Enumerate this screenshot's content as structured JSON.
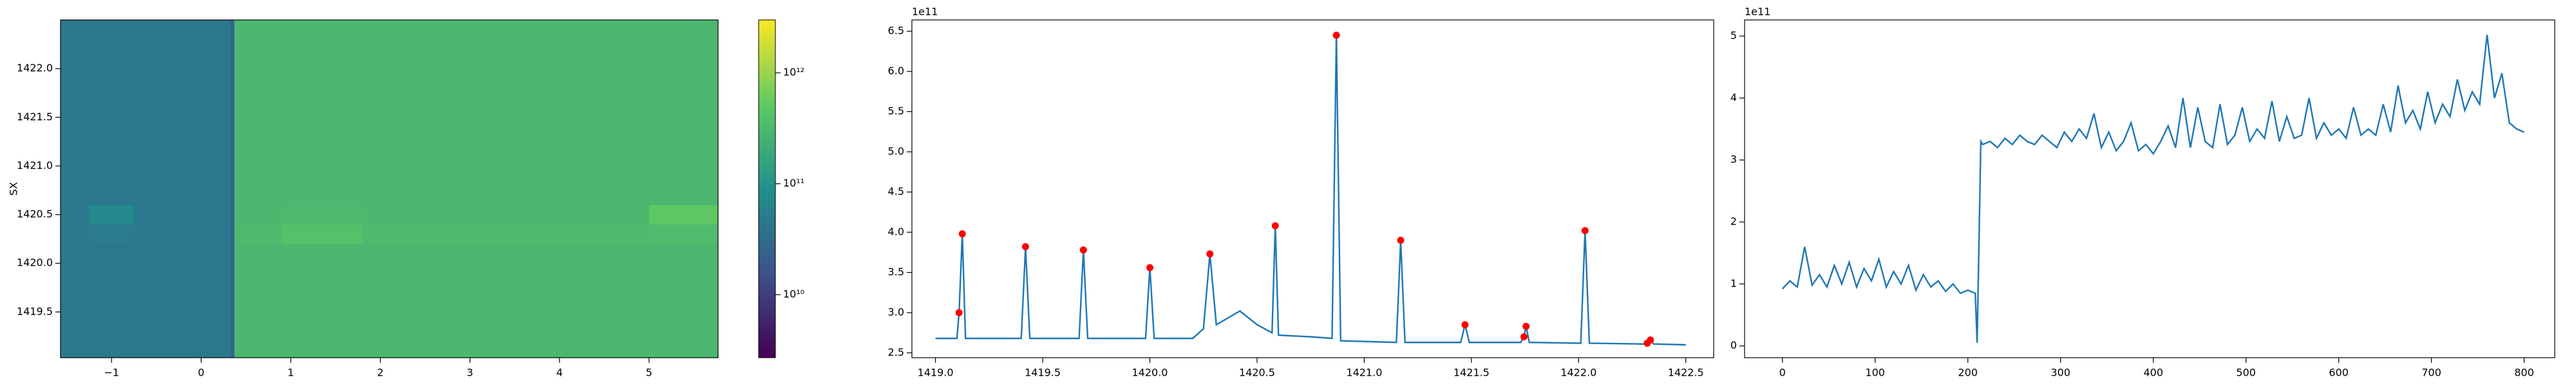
{
  "chart_data": [
    {
      "type": "heatmap",
      "ylabel": "SX",
      "x_edges": [
        -1.57,
        -1.25,
        -0.75,
        0.33,
        0.37,
        0.9,
        1.8,
        5.0,
        5.77
      ],
      "y_edges": [
        1419.03,
        1420.2,
        1420.4,
        1420.6,
        1422.5
      ],
      "values": [
        [
          45000000000.0,
          45000000000.0,
          45000000000.0,
          25000000000.0,
          300000000000.0,
          300000000000.0,
          300000000000.0,
          300000000000.0
        ],
        [
          45000000000.0,
          50000000000.0,
          45000000000.0,
          25000000000.0,
          330000000000.0,
          400000000000.0,
          320000000000.0,
          340000000000.0
        ],
        [
          45000000000.0,
          70000000000.0,
          45000000000.0,
          25000000000.0,
          300000000000.0,
          320000000000.0,
          300000000000.0,
          500000000000.0
        ],
        [
          45000000000.0,
          45000000000.0,
          45000000000.0,
          25000000000.0,
          300000000000.0,
          300000000000.0,
          300000000000.0,
          300000000000.0
        ]
      ],
      "xlim": [
        -1.57,
        5.77
      ],
      "ylim": [
        1419.03,
        1422.5
      ],
      "xticks": [
        {
          "value": -1,
          "label": "−1"
        },
        0,
        1,
        2,
        3,
        4,
        5
      ],
      "yticks": [
        {
          "value": 1419.5,
          "label": "1419.5"
        },
        {
          "value": 1420.0,
          "label": "1420.0"
        },
        {
          "value": 1420.5,
          "label": "1420.5"
        },
        {
          "value": 1421.0,
          "label": "1421.0"
        },
        {
          "value": 1421.5,
          "label": "1421.5"
        },
        {
          "value": 1422.0,
          "label": "1422.0"
        }
      ],
      "colorbar": {
        "colormap": "viridis",
        "log": true,
        "lim": [
          2700000000.0,
          3000000000000.0
        ],
        "ticks": [
          {
            "value": 10000000000.0,
            "label": "10¹⁰"
          },
          {
            "value": 100000000000.0,
            "label": "10¹¹"
          },
          {
            "value": 1000000000000.0,
            "label": "10¹²"
          }
        ]
      }
    },
    {
      "type": "line",
      "offset_label": "1e11",
      "series": [
        {
          "style": "line",
          "color": "#1f77b4",
          "x": [
            1419.0,
            1419.1,
            1419.11,
            1419.125,
            1419.14,
            1419.4,
            1419.42,
            1419.44,
            1419.67,
            1419.69,
            1419.71,
            1419.98,
            1420.0,
            1420.02,
            1420.2,
            1420.25,
            1420.28,
            1420.31,
            1420.42,
            1420.5,
            1420.57,
            1420.585,
            1420.6,
            1420.75,
            1420.85,
            1420.87,
            1420.89,
            1421.15,
            1421.17,
            1421.19,
            1421.45,
            1421.47,
            1421.49,
            1421.73,
            1421.745,
            1421.755,
            1421.77,
            1422.01,
            1422.03,
            1422.05,
            1422.3,
            1422.32,
            1422.335,
            1422.35,
            1422.5
          ],
          "values": [
            2.68,
            2.68,
            3.0,
            3.98,
            2.68,
            2.68,
            3.82,
            2.68,
            2.68,
            3.78,
            2.68,
            2.68,
            3.56,
            2.68,
            2.68,
            2.8,
            3.73,
            2.85,
            3.02,
            2.85,
            2.75,
            4.08,
            2.72,
            2.7,
            2.68,
            6.45,
            2.65,
            2.63,
            3.9,
            2.63,
            2.63,
            2.85,
            2.63,
            2.63,
            2.7,
            2.83,
            2.63,
            2.62,
            4.02,
            2.62,
            2.61,
            2.62,
            2.66,
            2.61,
            2.6
          ]
        },
        {
          "style": "markers",
          "color": "red",
          "x": [
            1419.11,
            1419.125,
            1419.42,
            1419.69,
            1420.0,
            1420.28,
            1420.585,
            1420.87,
            1421.17,
            1421.47,
            1421.745,
            1421.755,
            1422.03,
            1422.32,
            1422.335
          ],
          "values": [
            3.0,
            3.98,
            3.82,
            3.78,
            3.56,
            3.73,
            4.08,
            6.45,
            3.9,
            2.85,
            2.7,
            2.83,
            4.02,
            2.62,
            2.66
          ]
        }
      ],
      "xlim": [
        1418.89,
        1422.63
      ],
      "ylim": [
        2.44,
        6.64
      ],
      "xticks": [
        {
          "value": 1419.0,
          "label": "1419.0"
        },
        {
          "value": 1419.5,
          "label": "1419.5"
        },
        {
          "value": 1420.0,
          "label": "1420.0"
        },
        {
          "value": 1420.5,
          "label": "1420.5"
        },
        {
          "value": 1421.0,
          "label": "1421.0"
        },
        {
          "value": 1421.5,
          "label": "1421.5"
        },
        {
          "value": 1422.0,
          "label": "1422.0"
        },
        {
          "value": 1422.5,
          "label": "1422.5"
        }
      ],
      "yticks": [
        2.5,
        {
          "value": 3.0,
          "label": "3.0"
        },
        3.5,
        {
          "value": 4.0,
          "label": "4.0"
        },
        4.5,
        {
          "value": 5.0,
          "label": "5.0"
        },
        5.5,
        {
          "value": 6.0,
          "label": "6.0"
        },
        6.5
      ]
    },
    {
      "type": "line",
      "offset_label": "1e11",
      "series": [
        {
          "style": "line",
          "color": "#1f77b4",
          "x": [
            0,
            8,
            16,
            24,
            32,
            40,
            48,
            56,
            64,
            72,
            80,
            88,
            96,
            104,
            112,
            120,
            128,
            136,
            144,
            152,
            160,
            168,
            176,
            184,
            192,
            200,
            208,
            210,
            214,
            216,
            224,
            232,
            240,
            248,
            256,
            264,
            272,
            280,
            288,
            296,
            304,
            312,
            320,
            328,
            336,
            344,
            352,
            360,
            368,
            376,
            384,
            392,
            400,
            408,
            416,
            424,
            432,
            440,
            448,
            456,
            464,
            472,
            480,
            488,
            496,
            504,
            512,
            520,
            528,
            536,
            544,
            552,
            560,
            568,
            576,
            584,
            592,
            600,
            608,
            616,
            624,
            632,
            640,
            648,
            656,
            664,
            672,
            680,
            688,
            696,
            704,
            712,
            720,
            728,
            736,
            744,
            752,
            760,
            768,
            776,
            784,
            792,
            800
          ],
          "values": [
            0.92,
            1.05,
            0.95,
            1.6,
            0.98,
            1.15,
            0.95,
            1.3,
            1.0,
            1.35,
            0.95,
            1.25,
            1.05,
            1.4,
            0.95,
            1.2,
            1.0,
            1.3,
            0.9,
            1.15,
            0.95,
            1.05,
            0.88,
            1.0,
            0.85,
            0.9,
            0.85,
            0.05,
            3.3,
            3.25,
            3.3,
            3.2,
            3.35,
            3.25,
            3.4,
            3.3,
            3.25,
            3.4,
            3.3,
            3.2,
            3.45,
            3.3,
            3.5,
            3.35,
            3.75,
            3.2,
            3.45,
            3.15,
            3.3,
            3.6,
            3.15,
            3.25,
            3.1,
            3.3,
            3.55,
            3.2,
            4.0,
            3.2,
            3.85,
            3.3,
            3.2,
            3.9,
            3.25,
            3.4,
            3.85,
            3.3,
            3.5,
            3.35,
            3.95,
            3.3,
            3.7,
            3.35,
            3.4,
            4.0,
            3.35,
            3.6,
            3.4,
            3.5,
            3.35,
            3.85,
            3.4,
            3.5,
            3.4,
            3.9,
            3.45,
            4.2,
            3.6,
            3.8,
            3.5,
            4.1,
            3.6,
            3.9,
            3.7,
            4.3,
            3.8,
            4.1,
            3.9,
            5.02,
            4.0,
            4.4,
            3.6,
            3.5,
            3.45
          ]
        }
      ],
      "xlim": [
        -40.8,
        833
      ],
      "ylim": [
        -0.19,
        5.26
      ],
      "xticks": [
        0,
        100,
        200,
        300,
        400,
        500,
        600,
        700,
        800
      ],
      "yticks": [
        0,
        1,
        2,
        3,
        4,
        5
      ]
    }
  ]
}
